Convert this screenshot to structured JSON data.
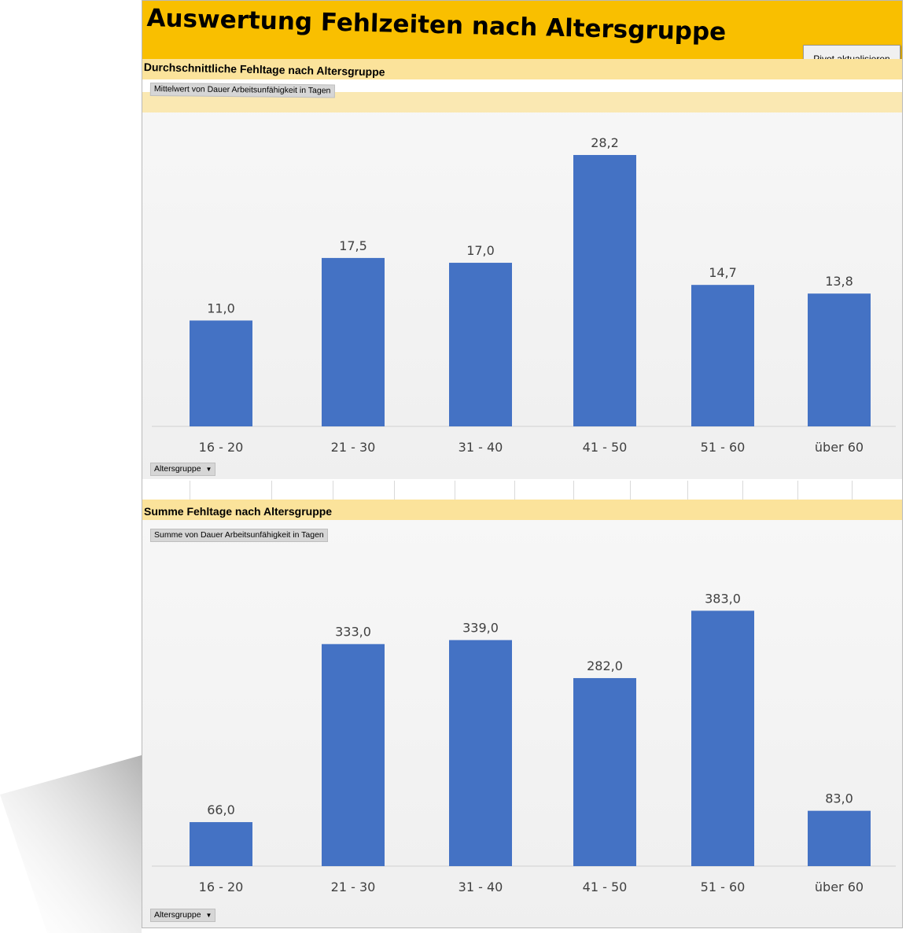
{
  "title": "Auswertung Fehlzeiten nach Altersgruppe",
  "pivot_button_label": "Pivot aktualisieren",
  "colors": {
    "header": "#f9bf00",
    "section_band": "#fbe39b",
    "bar": "#4472c4"
  },
  "sections": [
    {
      "heading": "Durchschnittliche Fehltage nach Altersgruppe",
      "value_field": "Mittelwert von Dauer Arbeitsunfähigkeit in Tagen",
      "axis_field": "Altersgruppe"
    },
    {
      "heading": "Summe Fehltage nach Altersgruppe",
      "value_field": "Summe  von Dauer Arbeitsunfähigkeit in Tagen",
      "axis_field": "Altersgruppe"
    }
  ],
  "chart_data": [
    {
      "type": "bar",
      "categories": [
        "16 - 20",
        "21 - 30",
        "31 - 40",
        "41 - 50",
        "51 - 60",
        "über 60"
      ],
      "values": [
        11.0,
        17.5,
        17.0,
        28.2,
        14.7,
        13.8
      ],
      "data_labels": [
        "11,0",
        "17,5",
        "17,0",
        "28,2",
        "14,7",
        "13,8"
      ],
      "ylim": [
        0,
        30
      ],
      "grid": false,
      "legend": "none"
    },
    {
      "type": "bar",
      "categories": [
        "16 - 20",
        "21 - 30",
        "31 - 40",
        "41 - 50",
        "51 - 60",
        "über 60"
      ],
      "values": [
        66.0,
        333.0,
        339.0,
        282.0,
        383.0,
        83.0
      ],
      "data_labels": [
        "66,0",
        "333,0",
        "339,0",
        "282,0",
        "383,0",
        "83,0"
      ],
      "ylim": [
        0,
        420
      ],
      "grid": false,
      "legend": "none"
    }
  ]
}
